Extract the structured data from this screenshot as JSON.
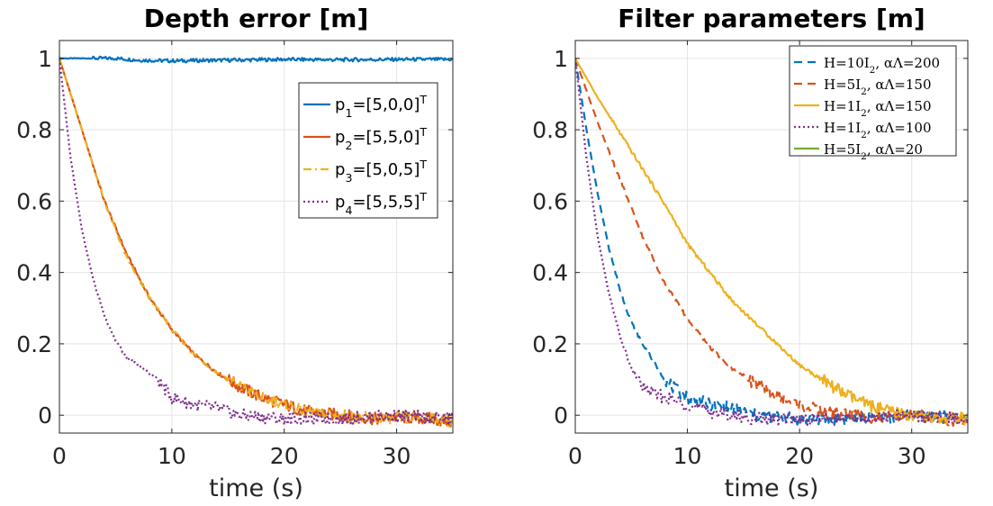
{
  "chart_data": [
    {
      "type": "line",
      "title": "Depth error [m]",
      "xlabel": "time (s)",
      "ylabel": "",
      "xlim": [
        0,
        35
      ],
      "ylim": [
        -0.05,
        1.05
      ],
      "xticks": [
        0,
        10,
        20,
        30
      ],
      "yticks": [
        0,
        0.2,
        0.4,
        0.6,
        0.8,
        1
      ],
      "xtick_labels": [
        "0",
        "10",
        "20",
        "30"
      ],
      "ytick_labels": [
        "0",
        "0.2",
        "0.4",
        "0.6",
        "0.8",
        "1"
      ],
      "grid": true,
      "legend_position": "top-right",
      "series": [
        {
          "name": "p1=[5,0,0]T",
          "label_main": "p",
          "label_sub": "1",
          "label_rest": "=[5,0,0]",
          "label_sup": "T",
          "color": "#0072BD",
          "dash": "solid",
          "x": [
            0,
            5,
            7,
            10,
            15,
            20,
            25,
            30,
            35
          ],
          "values": [
            1.0,
            1.0,
            0.995,
            0.993,
            0.995,
            0.997,
            0.996,
            0.997,
            0.997
          ]
        },
        {
          "name": "p2=[5,5,0]T",
          "label_main": "p",
          "label_sub": "2",
          "label_rest": "=[5,5,0]",
          "label_sup": "T",
          "color": "#D95319",
          "dash": "solid",
          "x": [
            0,
            2,
            4,
            6,
            8,
            10,
            12,
            14,
            16,
            18,
            20,
            22,
            25,
            28,
            30,
            33,
            35
          ],
          "values": [
            1.0,
            0.8,
            0.6,
            0.45,
            0.33,
            0.24,
            0.17,
            0.12,
            0.08,
            0.05,
            0.03,
            0.01,
            0.0,
            -0.01,
            -0.005,
            -0.01,
            -0.02
          ]
        },
        {
          "name": "p3=[5,0,5]T",
          "label_main": "p",
          "label_sub": "3",
          "label_rest": "=[5,0,5]",
          "label_sup": "T",
          "color": "#EDB120",
          "dash": "dashdot",
          "x": [
            0,
            2,
            4,
            6,
            8,
            10,
            12,
            14,
            16,
            18,
            20,
            22,
            25,
            28,
            30,
            33,
            35
          ],
          "values": [
            1.0,
            0.8,
            0.6,
            0.44,
            0.33,
            0.24,
            0.17,
            0.12,
            0.08,
            0.05,
            0.03,
            0.01,
            0.0,
            -0.01,
            -0.01,
            -0.005,
            -0.02
          ]
        },
        {
          "name": "p4=[5,5,5]T",
          "label_main": "p",
          "label_sub": "4",
          "label_rest": "=[5,5,5]",
          "label_sup": "T",
          "color": "#7E2F8E",
          "dash": "dotted",
          "x": [
            0,
            1,
            2,
            3,
            4,
            5,
            6,
            7,
            8,
            9,
            10,
            12,
            14,
            16,
            20,
            25,
            30,
            35
          ],
          "values": [
            1.0,
            0.72,
            0.52,
            0.38,
            0.28,
            0.21,
            0.16,
            0.14,
            0.12,
            0.09,
            0.05,
            0.03,
            0.02,
            0.0,
            -0.01,
            -0.01,
            0.0,
            -0.01
          ]
        }
      ]
    },
    {
      "type": "line",
      "title": "Filter parameters [m]",
      "xlabel": "time (s)",
      "ylabel": "",
      "xlim": [
        0,
        35
      ],
      "ylim": [
        -0.05,
        1.05
      ],
      "xticks": [
        0,
        10,
        20,
        30
      ],
      "yticks": [
        0,
        0.2,
        0.4,
        0.6,
        0.8,
        1
      ],
      "xtick_labels": [
        "0",
        "10",
        "20",
        "30"
      ],
      "ytick_labels": [
        "0",
        "0.2",
        "0.4",
        "0.6",
        "0.8",
        "1"
      ],
      "grid": true,
      "legend_position": "top-right",
      "series": [
        {
          "name": "H=10I2, αΛ=200",
          "label_main": "H=10I",
          "label_sub": "2",
          "label_rest": ", αΛ=200",
          "label_sup": "",
          "color": "#0072BD",
          "dash": "dashed",
          "x": [
            0,
            1,
            2,
            3,
            4,
            5,
            6,
            7,
            8,
            9,
            10,
            12,
            14,
            16,
            20,
            25,
            30,
            35
          ],
          "values": [
            1.0,
            0.8,
            0.62,
            0.47,
            0.35,
            0.26,
            0.2,
            0.15,
            0.1,
            0.07,
            0.05,
            0.03,
            0.02,
            0.0,
            -0.01,
            -0.01,
            0.0,
            -0.01
          ]
        },
        {
          "name": "H=5I2, αΛ=150",
          "label_main": "H=5I",
          "label_sub": "2",
          "label_rest": ", αΛ=150",
          "label_sup": "",
          "color": "#D95319",
          "dash": "dashed",
          "x": [
            0,
            2,
            4,
            6,
            8,
            10,
            12,
            14,
            16,
            18,
            20,
            22,
            25,
            28,
            30,
            33,
            35
          ],
          "values": [
            1.0,
            0.82,
            0.66,
            0.5,
            0.37,
            0.27,
            0.19,
            0.13,
            0.09,
            0.05,
            0.03,
            0.01,
            0.0,
            -0.01,
            0.0,
            -0.01,
            -0.02
          ]
        },
        {
          "name": "H=1I2, αΛ=150",
          "label_main": "H=1I",
          "label_sub": "2",
          "label_rest": ", αΛ=150",
          "label_sup": "",
          "color": "#EDB120",
          "dash": "solid",
          "x": [
            0,
            2,
            4,
            6,
            8,
            10,
            12,
            14,
            16,
            18,
            20,
            22,
            24,
            26,
            28,
            30,
            32,
            35
          ],
          "values": [
            1.0,
            0.89,
            0.79,
            0.69,
            0.59,
            0.48,
            0.4,
            0.32,
            0.26,
            0.2,
            0.14,
            0.1,
            0.06,
            0.03,
            0.01,
            0.0,
            -0.01,
            -0.01
          ]
        },
        {
          "name": "H=1I2, αΛ=100",
          "label_main": "H=1I",
          "label_sub": "2",
          "label_rest": ", αΛ=100",
          "label_sup": "",
          "color": "#7E2F8E",
          "dash": "dotted",
          "x": [
            0,
            1,
            2,
            3,
            4,
            5,
            6,
            7,
            8,
            10,
            12,
            14,
            16,
            20,
            25,
            30,
            35
          ],
          "values": [
            1.0,
            0.72,
            0.5,
            0.34,
            0.22,
            0.13,
            0.08,
            0.06,
            0.05,
            0.03,
            0.01,
            0.0,
            -0.01,
            -0.01,
            -0.01,
            0.0,
            -0.01
          ]
        },
        {
          "name": "H=5I2, αΛ=20",
          "label_main": "H=5I",
          "label_sub": "2",
          "label_rest": ", αΛ=20",
          "label_sup": "",
          "color": "#77AC30",
          "dash": "solid",
          "x": [],
          "values": []
        }
      ]
    }
  ]
}
